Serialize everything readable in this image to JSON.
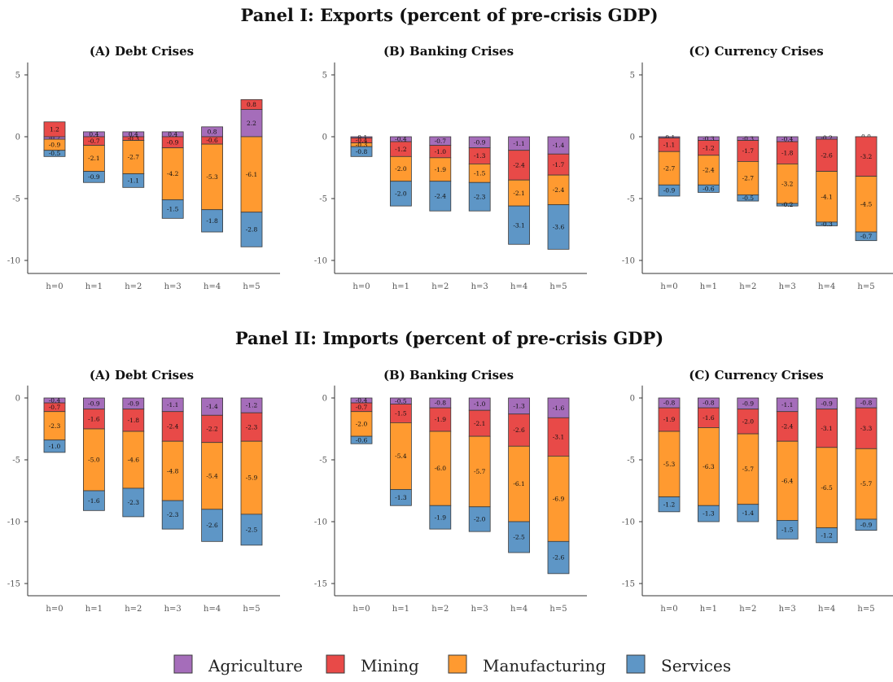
{
  "panels": [
    {
      "title": "Panel I: Exports (percent of pre-crisis GDP)",
      "charts": [
        {
          "title": "(A) Debt Crises",
          "ylim": [
            -11,
            6
          ],
          "ticks": [
            5,
            0,
            -5,
            -10
          ],
          "Agriculture": [
            -0.2,
            0.4,
            0.4,
            0.4,
            0.8,
            2.2
          ],
          "Mining": [
            1.2,
            -0.7,
            -0.3,
            -0.9,
            -0.6,
            0.8
          ],
          "Manufacturing": [
            -0.9,
            -2.1,
            -2.7,
            -4.2,
            -5.3,
            -6.1
          ],
          "Services": [
            -0.5,
            -0.9,
            -1.1,
            -1.5,
            -1.8,
            -2.8
          ]
        },
        {
          "title": "(B) Banking Crises",
          "ylim": [
            -11,
            6
          ],
          "ticks": [
            5,
            0,
            -5,
            -10
          ],
          "Agriculture": [
            -0.1,
            -0.4,
            -0.7,
            -0.9,
            -1.1,
            -1.4
          ],
          "Mining": [
            -0.4,
            -1.2,
            -1.0,
            -1.3,
            -2.4,
            -1.7
          ],
          "Manufacturing": [
            -0.3,
            -2.0,
            -1.9,
            -1.5,
            -2.1,
            -2.4
          ],
          "Services": [
            -0.8,
            -2.0,
            -2.4,
            -2.3,
            -3.1,
            -3.6
          ]
        },
        {
          "title": "(C) Currency Crises",
          "ylim": [
            -11,
            6
          ],
          "ticks": [
            5,
            0,
            -5,
            -10
          ],
          "Agriculture": [
            -0.1,
            -0.3,
            -0.3,
            -0.4,
            -0.2,
            -0.0
          ],
          "Mining": [
            -1.1,
            -1.2,
            -1.7,
            -1.8,
            -2.6,
            -3.2
          ],
          "Manufacturing": [
            -2.7,
            -2.4,
            -2.7,
            -3.2,
            -4.1,
            -4.5
          ],
          "Services": [
            -0.9,
            -0.6,
            -0.5,
            -0.2,
            -0.3,
            -0.7
          ]
        }
      ]
    },
    {
      "title": "Panel II: Imports (percent of pre-crisis GDP)",
      "charts": [
        {
          "title": "(A) Debt Crises",
          "ylim": [
            -16,
            1
          ],
          "ticks": [
            0,
            -5,
            -10,
            -15
          ],
          "Agriculture": [
            -0.4,
            -0.9,
            -0.9,
            -1.1,
            -1.4,
            -1.2
          ],
          "Mining": [
            -0.7,
            -1.6,
            -1.8,
            -2.4,
            -2.2,
            -2.3
          ],
          "Manufacturing": [
            -2.3,
            -5.0,
            -4.6,
            -4.8,
            -5.4,
            -5.9
          ],
          "Services": [
            -1.0,
            -1.6,
            -2.3,
            -2.3,
            -2.6,
            -2.5
          ]
        },
        {
          "title": "(B) Banking Crises",
          "ylim": [
            -16,
            1
          ],
          "ticks": [
            0,
            -5,
            -10,
            -15
          ],
          "Agriculture": [
            -0.4,
            -0.5,
            -0.8,
            -1.0,
            -1.3,
            -1.6
          ],
          "Mining": [
            -0.7,
            -1.5,
            -1.9,
            -2.1,
            -2.6,
            -3.1
          ],
          "Manufacturing": [
            -2.0,
            -5.4,
            -6.0,
            -5.7,
            -6.1,
            -6.9
          ],
          "Services": [
            -0.6,
            -1.3,
            -1.9,
            -2.0,
            -2.5,
            -2.6
          ]
        },
        {
          "title": "(C) Currency Crises",
          "ylim": [
            -16,
            1
          ],
          "ticks": [
            0,
            -5,
            -10,
            -15
          ],
          "Agriculture": [
            -0.8,
            -0.8,
            -0.9,
            -1.1,
            -0.9,
            -0.8
          ],
          "Mining": [
            -1.9,
            -1.6,
            -2.0,
            -2.4,
            -3.1,
            -3.3
          ],
          "Manufacturing": [
            -5.3,
            -6.3,
            -5.7,
            -6.4,
            -6.5,
            -5.7
          ],
          "Services": [
            -1.2,
            -1.3,
            -1.4,
            -1.5,
            -1.2,
            -0.9
          ]
        }
      ]
    }
  ],
  "categories": [
    "h=0",
    "h=1",
    "h=2",
    "h=3",
    "h=4",
    "h=5"
  ],
  "series": [
    {
      "name": "Agriculture",
      "color": "#A56DBA"
    },
    {
      "name": "Mining",
      "color": "#E84A48"
    },
    {
      "name": "Manufacturing",
      "color": "#FF9A30"
    },
    {
      "name": "Services",
      "color": "#5E96C6"
    }
  ],
  "chart_data": {
    "type": "bar",
    "stacked": true,
    "categories": [
      "h=0",
      "h=1",
      "h=2",
      "h=3",
      "h=4",
      "h=5"
    ],
    "series_names": [
      "Agriculture",
      "Mining",
      "Manufacturing",
      "Services"
    ],
    "legend": "bottom"
  }
}
